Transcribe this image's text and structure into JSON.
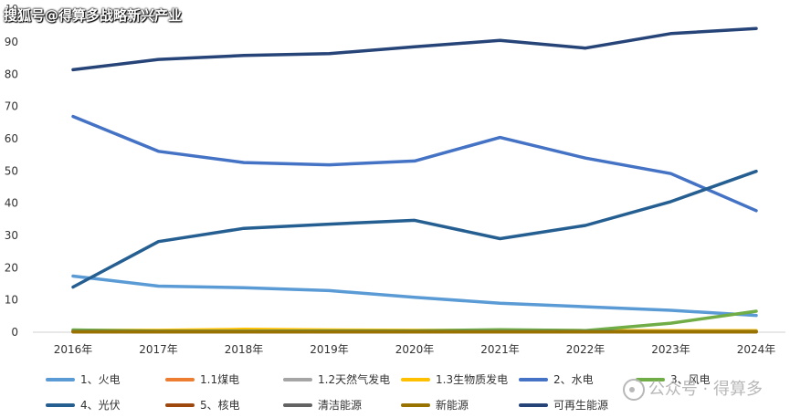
{
  "header": {
    "unit": "10",
    "watermark_top": "搜狐号@得算多战略新兴产业",
    "watermark_bottom": "公众号 · 得算多"
  },
  "chart_data": {
    "type": "line",
    "title": "",
    "xlabel": "",
    "ylabel": "",
    "ylim": [
      0,
      90
    ],
    "yticks": [
      0,
      10,
      20,
      30,
      40,
      50,
      60,
      70,
      80,
      90
    ],
    "grid": false,
    "legend": "bottom",
    "categories": [
      "2016年",
      "2017年",
      "2018年",
      "2019年",
      "2020年",
      "2021年",
      "2022年",
      "2023年",
      "2024年"
    ],
    "series": [
      {
        "name": "1、火电",
        "color": "#5b9bd5",
        "values": [
          17.4,
          14.3,
          13.8,
          12.9,
          10.8,
          9.0,
          7.9,
          6.8,
          5.2
        ]
      },
      {
        "name": "1.1煤电",
        "color": "#ed7d31",
        "values": [
          0.3,
          0.2,
          0.2,
          0.2,
          0.2,
          0.2,
          0.2,
          0.2,
          0.2
        ]
      },
      {
        "name": "1.2天然气发电",
        "color": "#a5a5a5",
        "values": [
          0.4,
          0.3,
          0.3,
          0.3,
          0.3,
          0.3,
          0.3,
          0.3,
          0.3
        ]
      },
      {
        "name": "1.3生物质发电",
        "color": "#ffc000",
        "values": [
          0.6,
          0.6,
          0.9,
          0.7,
          0.6,
          0.6,
          0.5,
          0.5,
          0.5
        ]
      },
      {
        "name": "2、水电",
        "color": "#4472c4",
        "values": [
          66.9,
          56.1,
          52.6,
          51.9,
          53.1,
          60.4,
          54.0,
          49.2,
          37.7
        ]
      },
      {
        "name": "3、风电",
        "color": "#70ad47",
        "values": [
          0.7,
          0.3,
          0.3,
          0.4,
          0.4,
          0.8,
          0.5,
          2.8,
          6.5
        ]
      },
      {
        "name": "4、光伏",
        "color": "#255e91",
        "values": [
          14.0,
          28.1,
          32.2,
          33.5,
          34.7,
          29.0,
          33.1,
          40.5,
          49.9
        ]
      },
      {
        "name": "5、核电",
        "color": "#9e480e",
        "values": [
          0.1,
          0.1,
          0.1,
          0.1,
          0.1,
          0.1,
          0.1,
          0.1,
          0.1
        ]
      },
      {
        "name": "清洁能源",
        "color": "#636363",
        "values": [
          0.2,
          0.2,
          0.2,
          0.2,
          0.2,
          0.2,
          0.2,
          0.2,
          0.2
        ]
      },
      {
        "name": "新能源",
        "color": "#997300",
        "values": [
          0.1,
          0.1,
          0.1,
          0.1,
          0.1,
          0.1,
          0.1,
          0.1,
          0.1
        ]
      },
      {
        "name": "可再生能源",
        "color": "#264478",
        "values": [
          81.4,
          84.6,
          85.8,
          86.4,
          88.5,
          90.5,
          88.1,
          92.6,
          94.2
        ]
      }
    ]
  }
}
